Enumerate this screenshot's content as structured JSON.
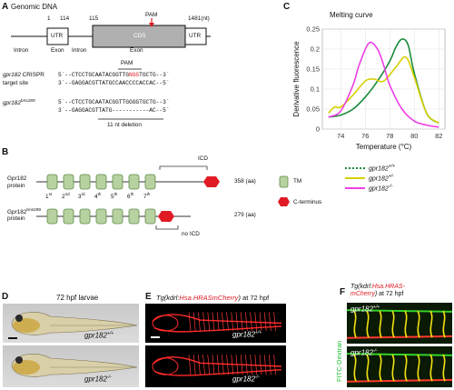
{
  "panelA": {
    "letter": "A",
    "title": "Genomic DNA",
    "coords": {
      "c1": "1",
      "c114": "114",
      "c115": "115",
      "c1481": "1481(nt)"
    },
    "pam_top": "PAM",
    "boxes": {
      "utr_left": "UTR",
      "cds": "CDS",
      "utr_right": "UTR"
    },
    "regions": {
      "intron1": "Intron",
      "exon1": "Exon",
      "intron2": "Intron",
      "exon2": "Exon"
    },
    "pam_seq_label": "PAM",
    "crispr_label_1": "gpr182",
    "crispr_label_2": " CRISPR",
    "target_site_label": "target site",
    "crispr_line1_pre": "5´--CTCCTGCAATACGGTTG",
    "crispr_line1_pam": "NGG",
    "crispr_line1_post": "TGCTG--3´",
    "crispr_line2": "3´--GAGGACGTTATGCCAACCCCACCAC--5´",
    "allele_label": "gpr182",
    "allele_sup": "bns289",
    "allele_line1": "5´--CTCCTGCAATACGGTTGGGGTGCTG--3´",
    "allele_line2": "3´--GAGGACGTTATG-----------AC--5´",
    "deletion_label": "11 nt deletion"
  },
  "panelB": {
    "letter": "B",
    "protein1_name": "Gpr182",
    "protein1_sub": "protein",
    "protein1_len": "358 (aa)",
    "protein2_name": "Gpr182",
    "protein2_sup": "bns289",
    "protein2_sub": "protein",
    "protein2_len": "279 (aa)",
    "icd_label": "ICD",
    "no_icd_label": "no ICD",
    "tm_labels": [
      "1st",
      "2nd",
      "3rd",
      "4th",
      "5th",
      "6th",
      "7th"
    ],
    "legend_tm": "TM",
    "legend_cterm": "C-terminus"
  },
  "panelC": {
    "letter": "C",
    "title": "Melting curve",
    "legend_gene": "gpr182",
    "legend_sups": [
      "+/+",
      "+/-",
      "-/-"
    ]
  },
  "chart_data": {
    "type": "line",
    "title": "Melting curve",
    "xlabel": "Temperature (°C)",
    "ylabel": "Derivative fluorescence",
    "xlim": [
      72.5,
      82.5
    ],
    "ylim": [
      0,
      0.25
    ],
    "xticks": [
      74,
      76,
      78,
      80,
      82
    ],
    "yticks": [
      0,
      0.05,
      0.1,
      0.15,
      0.2,
      0.25
    ],
    "grid": true,
    "legend_position": "below",
    "series": [
      {
        "name": "gpr182 +/+",
        "color": "#1a8a3a",
        "x": [
          73,
          74,
          75,
          76,
          77,
          78,
          78.5,
          79,
          79.5,
          80,
          81,
          82
        ],
        "y": [
          0.03,
          0.035,
          0.05,
          0.08,
          0.12,
          0.17,
          0.205,
          0.225,
          0.21,
          0.14,
          0.04,
          0.015
        ]
      },
      {
        "name": "gpr182 +/-",
        "color": "#d6d000",
        "x": [
          73,
          73.5,
          74,
          75,
          76,
          76.7,
          77.5,
          78.5,
          79.3,
          80,
          81,
          82
        ],
        "y": [
          0.04,
          0.055,
          0.055,
          0.085,
          0.12,
          0.125,
          0.12,
          0.155,
          0.18,
          0.13,
          0.04,
          0.015
        ]
      },
      {
        "name": "gpr182 -/-",
        "color": "#ee3fe6",
        "x": [
          73,
          74,
          75,
          75.5,
          76.3,
          77,
          77.5,
          78,
          79,
          80,
          81,
          82
        ],
        "y": [
          0.03,
          0.045,
          0.11,
          0.16,
          0.215,
          0.2,
          0.16,
          0.11,
          0.05,
          0.02,
          0.01,
          0.005
        ]
      }
    ],
    "colors": {
      "wt": "#1a8a3a",
      "het": "#d6d000",
      "mut": "#ee3fe6"
    }
  },
  "panelD": {
    "letter": "D",
    "title": "72 hpf larvae",
    "top_gene": "gpr182",
    "top_sup": "+/+",
    "bottom_gene": "gpr182",
    "bottom_sup": "-/-"
  },
  "panelE": {
    "letter": "E",
    "title_tg": "Tg(kdrl:",
    "title_red": "Hsa.HRASmCherry",
    "title_end": ")",
    "title_suffix": " at 72 hpf",
    "top_gene": "gpr182",
    "top_sup": "+/+",
    "bottom_gene": "gpr182",
    "bottom_sup": "-/-"
  },
  "panelF": {
    "letter": "F",
    "title_tg": "Tg(kdrl:",
    "title_red": "Hsa.HRAS-",
    "title_red2": "mCherry",
    "title_end": ")",
    "title_suffix": " at 72 hpf",
    "side_label": "FITC-Dextran",
    "top_gene": "gpr182",
    "top_sup": "+/+",
    "bottom_gene": "gpr182",
    "bottom_sup": "-/-"
  },
  "colors": {
    "tm_fill": "#b7d2a0",
    "tm_stroke": "#5f8a4a",
    "cterm": "#e01b24",
    "cds_box": "#b0b0b0"
  }
}
